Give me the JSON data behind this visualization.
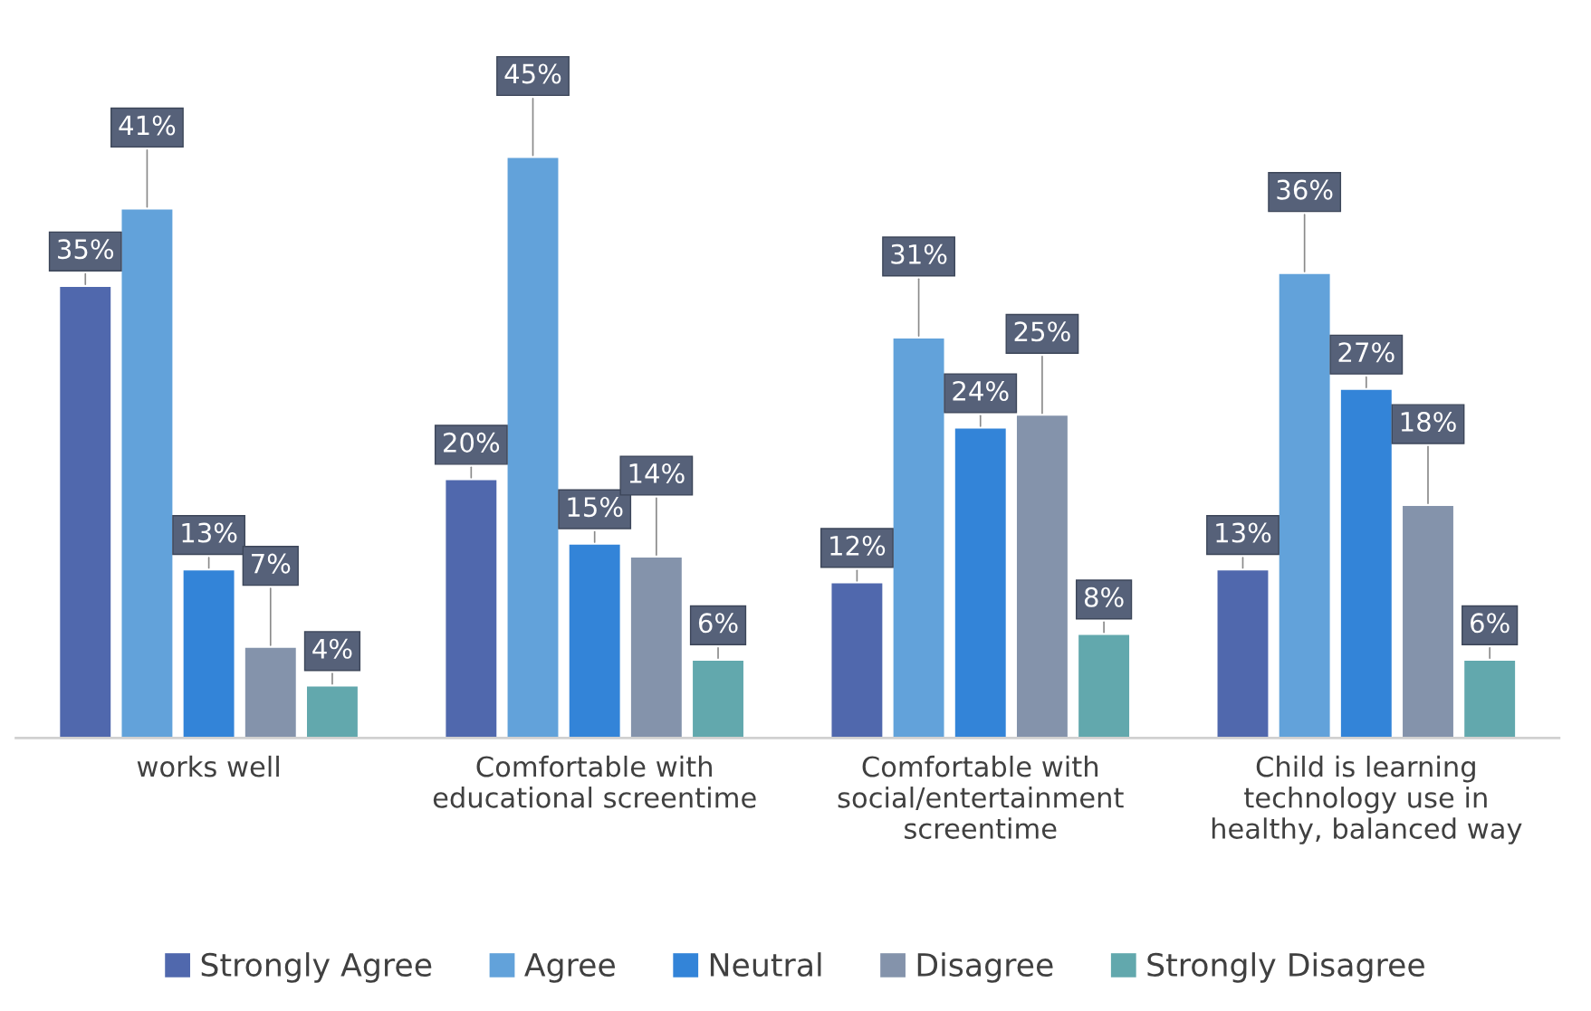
{
  "chart_data": {
    "type": "bar",
    "categories": [
      "works well",
      "Comfortable with\neducational screentime",
      "Comfortable with\nsocial/entertainment\nscreentime",
      "Child is learning\ntechnology use in\nhealthy, balanced way"
    ],
    "series": [
      {
        "name": "Strongly Agree",
        "color": "#5068ad",
        "values": [
          35,
          20,
          12,
          13
        ],
        "value_labels": [
          "35%",
          "20%",
          "12%",
          "13%"
        ]
      },
      {
        "name": "Agree",
        "color": "#62a2da",
        "values": [
          41,
          45,
          31,
          36
        ],
        "value_labels": [
          "41%",
          "45%",
          "31%",
          "36%"
        ]
      },
      {
        "name": "Neutral",
        "color": "#3384d8",
        "values": [
          13,
          15,
          24,
          27
        ],
        "value_labels": [
          "13%",
          "15%",
          "24%",
          "27%"
        ]
      },
      {
        "name": "Disagree",
        "color": "#8493ab",
        "values": [
          7,
          14,
          25,
          18
        ],
        "value_labels": [
          "7%",
          "14%",
          "25%",
          "18%"
        ]
      },
      {
        "name": "Strongly Disagree",
        "color": "#62a8ad",
        "values": [
          4,
          6,
          8,
          6
        ],
        "value_labels": [
          "4%",
          "6%",
          "8%",
          "6%"
        ]
      }
    ],
    "legend": "bottom",
    "grid": false
  }
}
